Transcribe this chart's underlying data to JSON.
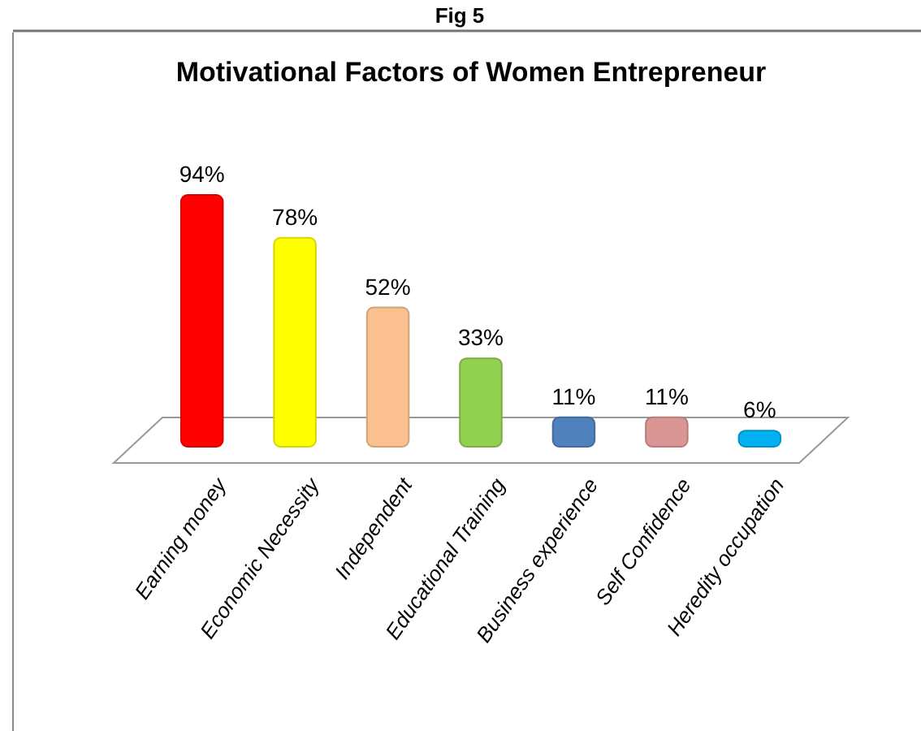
{
  "chart_data": {
    "type": "bar",
    "title": "Motivational Factors of Women Entrepreneur",
    "annotations": [
      "Fig 5"
    ],
    "categories": [
      "Earning money",
      "Economic Necessity",
      "Independent",
      "Educational Training",
      "Business experience",
      "Self Confidence",
      "Heredity occupation"
    ],
    "values": [
      94,
      78,
      52,
      33,
      11,
      11,
      6
    ],
    "value_labels": [
      "94%",
      "78%",
      "52%",
      "33%",
      "11%",
      "11%",
      "6%"
    ],
    "colors": [
      "#ff0000",
      "#ffff00",
      "#fac090",
      "#92d050",
      "#4f81bd",
      "#d99694",
      "#00b0f0"
    ]
  }
}
